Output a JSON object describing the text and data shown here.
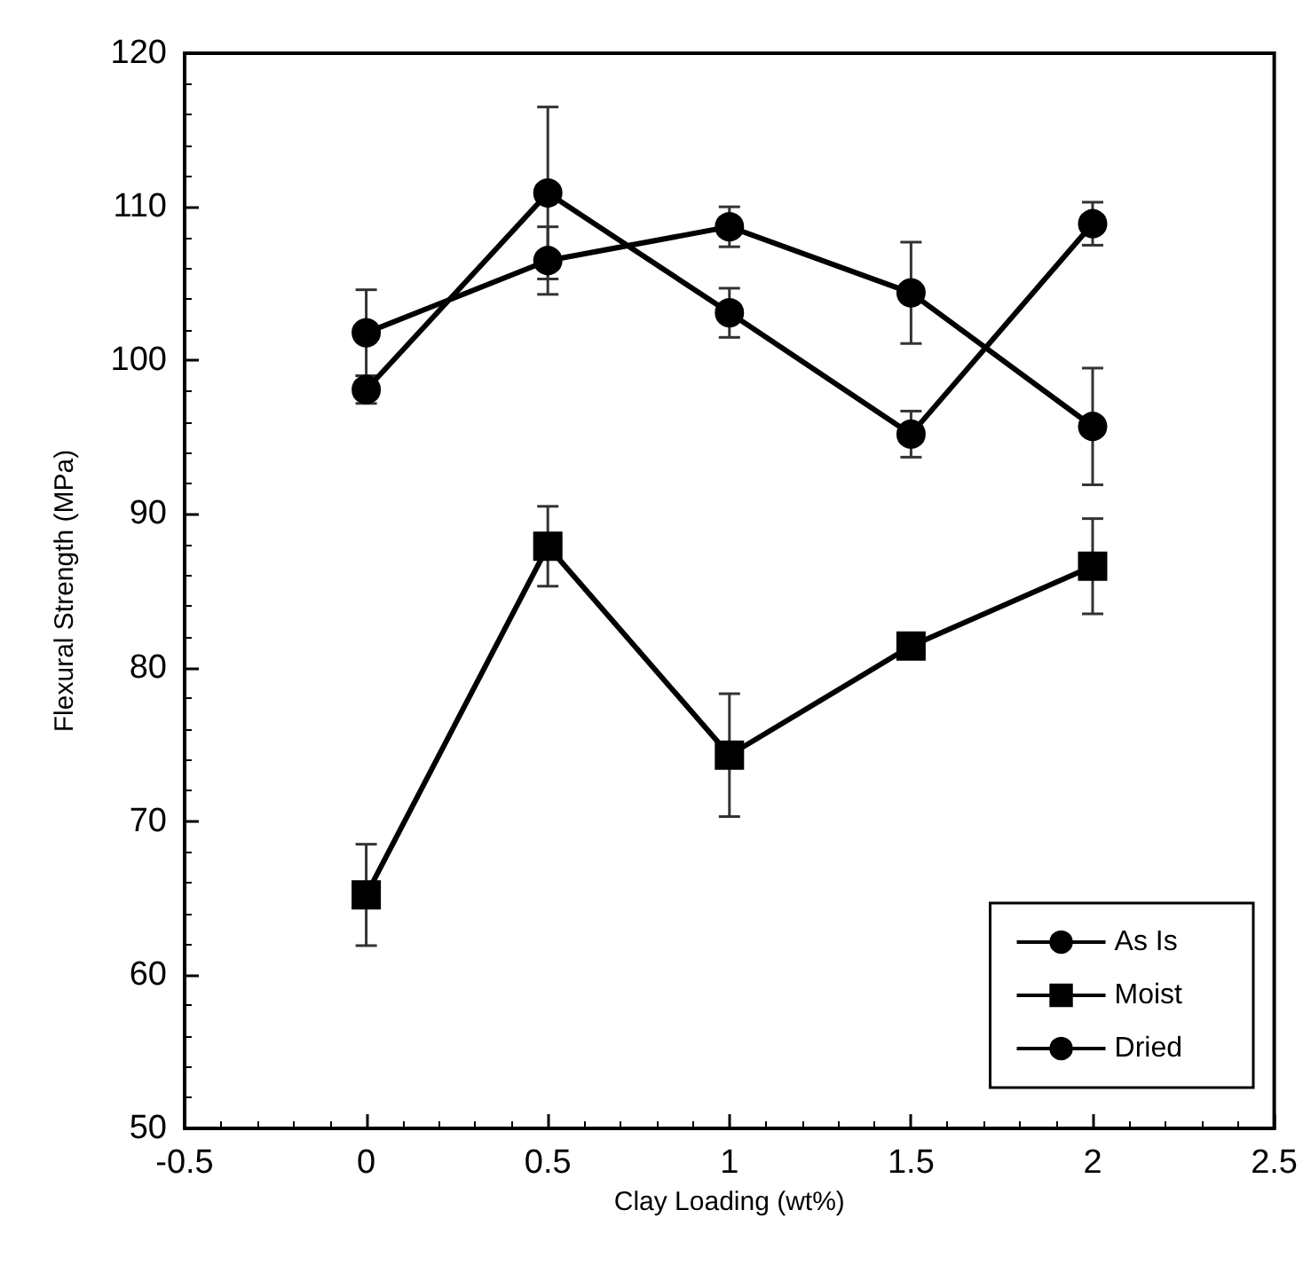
{
  "chart_data": {
    "type": "line",
    "xlabel": "Clay Loading (wt%)",
    "ylabel": "Flexural Strength (MPa)",
    "x": [
      0,
      0.5,
      1,
      1.5,
      2
    ],
    "series": [
      {
        "name": "As Is",
        "color": "#000000",
        "marker": "circle",
        "values": [
          101.8,
          106.5,
          108.7,
          104.4,
          95.7
        ],
        "errors": [
          2.8,
          2.2,
          1.3,
          3.3,
          3.8
        ]
      },
      {
        "name": "Moist",
        "color": "#000000",
        "marker": "square",
        "values": [
          65.2,
          87.9,
          74.3,
          81.4,
          86.6
        ],
        "errors": [
          3.3,
          2.6,
          4.0,
          null,
          3.1
        ]
      },
      {
        "name": "Dried",
        "color": "#000000",
        "marker": "circle",
        "values": [
          98.1,
          110.9,
          103.1,
          95.2,
          108.9
        ],
        "errors": [
          0.9,
          5.6,
          1.6,
          1.5,
          1.4
        ]
      }
    ],
    "xlim": [
      -0.5,
      2.5
    ],
    "xticks": [
      -0.5,
      0,
      0.5,
      1,
      1.5,
      2,
      2.5
    ],
    "ylim": [
      50,
      120
    ],
    "yticks": [
      50,
      60,
      70,
      80,
      90,
      100,
      110,
      120
    ],
    "grid": false,
    "legend": "bottom right",
    "line_style": "solid"
  }
}
